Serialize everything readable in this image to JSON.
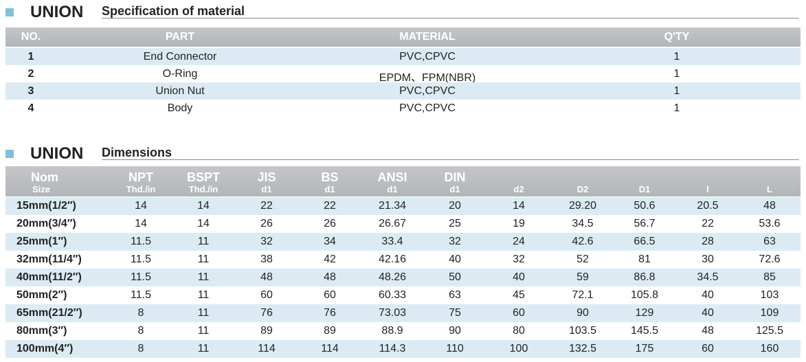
{
  "sections": [
    {
      "title": "UNION",
      "subtitle": "Specification of material",
      "table": {
        "headers": [
          "NO.",
          "PART",
          "MATERIAL",
          "Q'TY"
        ],
        "rows": [
          [
            "1",
            "End Connector",
            "PVC,CPVC",
            "1"
          ],
          [
            "2",
            "O-Ring",
            "EPDM、FPM(NBR)",
            "1"
          ],
          [
            "3",
            "Union Nut",
            "PVC,CPVC",
            "1"
          ],
          [
            "4",
            "Body",
            "PVC,CPVC",
            "1"
          ]
        ]
      }
    },
    {
      "title": "UNION",
      "subtitle": "Dimensions",
      "table": {
        "headers": [
          {
            "main": "Nom",
            "sub": "Size"
          },
          {
            "main": "NPT",
            "sub": "Thd./in"
          },
          {
            "main": "BSPT",
            "sub": "Thd./in"
          },
          {
            "main": "JIS",
            "sub": "d1"
          },
          {
            "main": "BS",
            "sub": "d1"
          },
          {
            "main": "ANSI",
            "sub": "d1"
          },
          {
            "main": "DIN",
            "sub": "d1"
          },
          {
            "sub": "d2"
          },
          {
            "sub": "D2"
          },
          {
            "sub": "D1"
          },
          {
            "sub": "l"
          },
          {
            "sub": "L"
          }
        ],
        "rows": [
          [
            "15mm(1/2″)",
            "14",
            "14",
            "22",
            "22",
            "21.34",
            "20",
            "14",
            "29.20",
            "50.6",
            "20.5",
            "48"
          ],
          [
            "20mm(3/4″)",
            "14",
            "14",
            "26",
            "26",
            "26.67",
            "25",
            "19",
            "34.5",
            "56.7",
            "22",
            "53.6"
          ],
          [
            "25mm(1″)",
            "11.5",
            "11",
            "32",
            "34",
            "33.4",
            "32",
            "24",
            "42.6",
            "66.5",
            "28",
            "63"
          ],
          [
            "32mm(11/4″)",
            "11.5",
            "11",
            "38",
            "42",
            "42.16",
            "40",
            "32",
            "52",
            "81",
            "30",
            "72.6"
          ],
          [
            "40mm(11/2″)",
            "11.5",
            "11",
            "48",
            "48",
            "48.26",
            "50",
            "40",
            "59",
            "86.8",
            "34.5",
            "85"
          ],
          [
            "50mm(2″)",
            "11.5",
            "11",
            "60",
            "60",
            "60.33",
            "63",
            "45",
            "72.1",
            "105.8",
            "40",
            "103"
          ],
          [
            "65mm(21/2″)",
            "8",
            "11",
            "76",
            "76",
            "73.03",
            "75",
            "60",
            "90",
            "129",
            "40",
            "109"
          ],
          [
            "80mm(3″)",
            "8",
            "11",
            "89",
            "89",
            "88.9",
            "90",
            "80",
            "103.5",
            "145.5",
            "48",
            "125.5"
          ],
          [
            "100mm(4″)",
            "8",
            "11",
            "114",
            "114",
            "114.3",
            "110",
            "100",
            "132.5",
            "175",
            "60",
            "160"
          ]
        ]
      }
    }
  ]
}
